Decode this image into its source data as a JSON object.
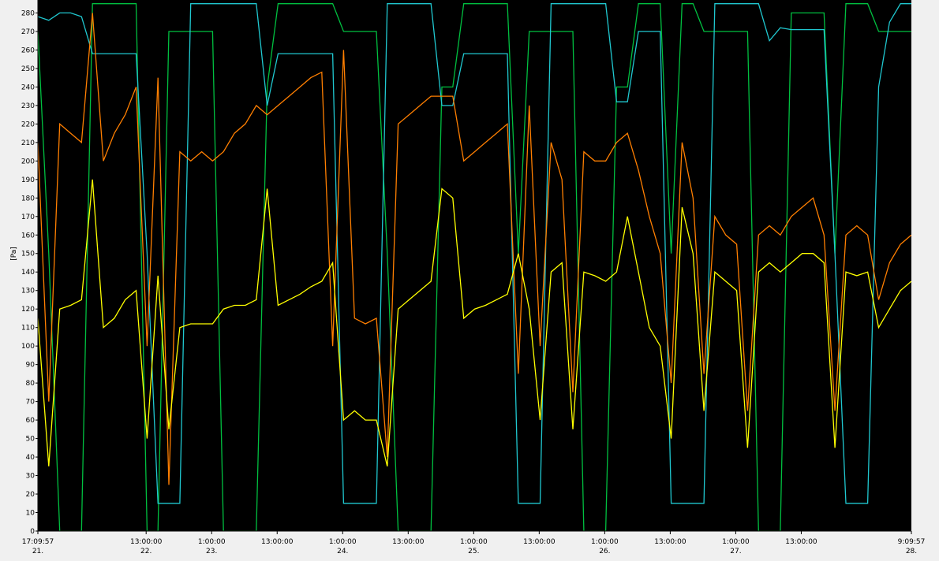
{
  "chart_data": {
    "type": "line",
    "y_label": "[Pa]",
    "x": [
      0,
      2,
      4,
      6,
      8,
      10,
      12,
      14,
      16,
      18,
      20,
      22,
      24,
      26,
      28,
      30,
      32,
      34,
      36,
      38,
      40,
      42,
      44,
      46,
      48,
      50,
      52,
      54,
      56,
      58,
      60,
      62,
      64,
      66,
      68,
      70,
      72,
      74,
      76,
      78,
      80,
      82,
      84,
      86,
      88,
      90,
      92,
      94,
      96,
      98,
      100,
      102,
      104,
      106,
      108,
      110,
      112,
      114,
      116,
      118,
      120,
      122,
      124,
      126,
      128,
      130,
      132,
      134,
      136,
      138,
      140,
      142,
      144,
      146,
      148,
      150,
      152,
      154,
      156,
      158,
      160
    ],
    "xlim": [
      0,
      160
    ],
    "xticks": [
      {
        "value": 0,
        "label": "17:09:57\n21."
      },
      {
        "value": 19.83,
        "label": "13:00:00\n22."
      },
      {
        "value": 31.83,
        "label": "1:00:00\n23."
      },
      {
        "value": 43.83,
        "label": "13:00:00"
      },
      {
        "value": 55.83,
        "label": "1:00:00\n24."
      },
      {
        "value": 67.83,
        "label": "13:00:00"
      },
      {
        "value": 79.83,
        "label": "1:00:00\n25."
      },
      {
        "value": 91.83,
        "label": "13:00:00"
      },
      {
        "value": 103.83,
        "label": "1:00:00\n26."
      },
      {
        "value": 115.83,
        "label": "13:00:00"
      },
      {
        "value": 127.83,
        "label": "1:00:00\n27."
      },
      {
        "value": 139.83,
        "label": "13:00:00"
      },
      {
        "value": 160,
        "label": "9:09:57\n28."
      }
    ],
    "ylim": [
      0,
      287
    ],
    "yticks": [
      0,
      10,
      20,
      30,
      40,
      50,
      60,
      70,
      80,
      90,
      100,
      110,
      120,
      130,
      140,
      150,
      160,
      170,
      180,
      190,
      200,
      210,
      220,
      230,
      240,
      250,
      260,
      270,
      280
    ],
    "series": [
      {
        "color": "#00c040",
        "values": [
          270,
          150,
          0,
          0,
          0,
          285,
          285,
          285,
          285,
          285,
          0,
          0,
          270,
          270,
          270,
          270,
          270,
          0,
          0,
          0,
          0,
          240,
          285,
          285,
          285,
          285,
          285,
          285,
          270,
          270,
          270,
          270,
          150,
          0,
          0,
          0,
          0,
          240,
          240,
          285,
          285,
          285,
          285,
          285,
          150,
          270,
          270,
          270,
          270,
          270,
          0,
          0,
          0,
          240,
          240,
          285,
          285,
          285,
          150,
          285,
          285,
          270,
          270,
          270,
          270,
          270,
          0,
          0,
          0,
          280,
          280,
          280,
          280,
          150,
          285,
          285,
          285,
          270,
          270,
          270,
          270
        ]
      },
      {
        "color": "#20c8d0",
        "values": [
          278,
          276,
          280,
          280,
          278,
          258,
          258,
          258,
          258,
          258,
          150,
          15,
          15,
          15,
          285,
          285,
          285,
          285,
          285,
          285,
          285,
          230,
          258,
          258,
          258,
          258,
          258,
          258,
          15,
          15,
          15,
          15,
          285,
          285,
          285,
          285,
          285,
          230,
          230,
          258,
          258,
          258,
          258,
          258,
          15,
          15,
          15,
          285,
          285,
          285,
          285,
          285,
          285,
          232,
          232,
          270,
          270,
          270,
          15,
          15,
          15,
          15,
          285,
          285,
          285,
          285,
          285,
          265,
          272,
          271,
          271,
          271,
          271,
          150,
          15,
          15,
          15,
          240,
          275,
          285,
          285
        ]
      },
      {
        "color": "#ff7f00",
        "values": [
          210,
          70,
          220,
          215,
          210,
          280,
          200,
          215,
          225,
          240,
          100,
          245,
          25,
          205,
          200,
          205,
          200,
          205,
          215,
          220,
          230,
          225,
          230,
          235,
          240,
          245,
          248,
          100,
          260,
          115,
          112,
          115,
          40,
          220,
          225,
          230,
          235,
          235,
          235,
          200,
          205,
          210,
          215,
          220,
          85,
          230,
          100,
          210,
          190,
          75,
          205,
          200,
          200,
          210,
          215,
          195,
          170,
          150,
          80,
          210,
          180,
          85,
          170,
          160,
          155,
          65,
          160,
          165,
          160,
          170,
          175,
          180,
          160,
          65,
          160,
          165,
          160,
          125,
          145,
          155,
          160
        ]
      },
      {
        "color": "#ffff00",
        "values": [
          115,
          35,
          120,
          122,
          125,
          190,
          110,
          115,
          125,
          130,
          50,
          138,
          55,
          110,
          112,
          112,
          112,
          120,
          122,
          122,
          125,
          185,
          122,
          125,
          128,
          132,
          135,
          145,
          60,
          65,
          60,
          60,
          35,
          120,
          125,
          130,
          135,
          185,
          180,
          115,
          120,
          122,
          125,
          128,
          150,
          120,
          60,
          140,
          145,
          55,
          140,
          138,
          135,
          140,
          170,
          140,
          110,
          100,
          50,
          175,
          150,
          65,
          140,
          135,
          130,
          45,
          140,
          145,
          140,
          145,
          150,
          150,
          145,
          45,
          140,
          138,
          140,
          110,
          120,
          130,
          135
        ]
      }
    ]
  }
}
